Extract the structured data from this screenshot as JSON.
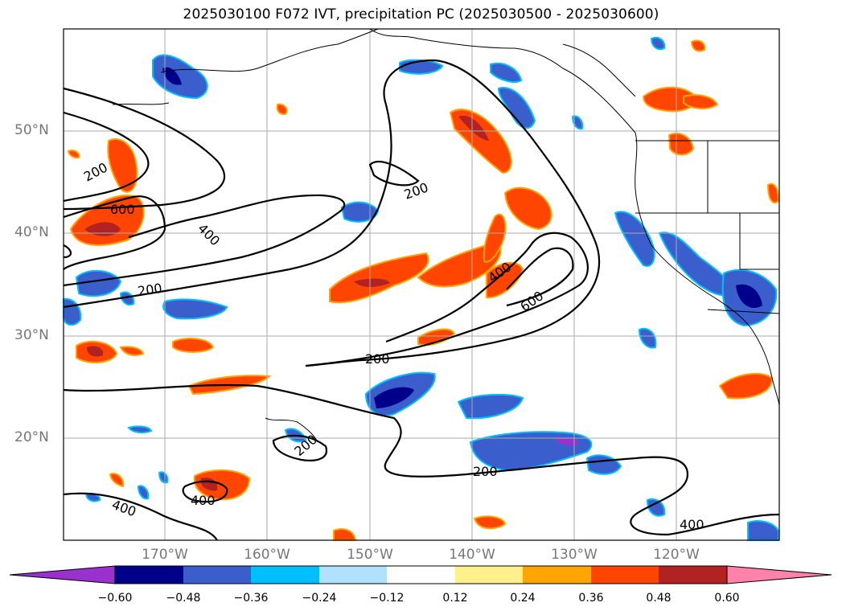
{
  "title": "2025030100 F072 IVT, precipitation PC (2025030500 - 2025030600)",
  "map": {
    "lat_labels": [
      {
        "text": "50°N",
        "lat": 50
      },
      {
        "text": "40°N",
        "lat": 40
      },
      {
        "text": "30°N",
        "lat": 30
      },
      {
        "text": "20°N",
        "lat": 20
      }
    ],
    "lon_labels": [
      {
        "text": "170°W",
        "lon": -170
      },
      {
        "text": "160°W",
        "lon": -160
      },
      {
        "text": "150°W",
        "lon": -150
      },
      {
        "text": "140°W",
        "lon": -140
      },
      {
        "text": "130°W",
        "lon": -130
      },
      {
        "text": "120°W",
        "lon": -120
      }
    ],
    "extent": {
      "lon_min": -180,
      "lon_max": -110,
      "lat_min": 10,
      "lat_max": 60
    },
    "gridlines": true,
    "ivt_contour_labels": [
      "200",
      "200",
      "600",
      "400",
      "200",
      "400",
      "600",
      "200",
      "200",
      "200",
      "400",
      "400",
      "400"
    ]
  },
  "colorbar": {
    "ticks": [
      "−0.60",
      "−0.48",
      "−0.36",
      "−0.24",
      "−0.12",
      "0.12",
      "0.24",
      "0.36",
      "0.48",
      "0.60"
    ],
    "colors": [
      "#9932cc",
      "#00008b",
      "#3a5fcd",
      "#00bfff",
      "#b0e2ff",
      "#ffffff",
      "#fff08c",
      "#ffa500",
      "#ff4500",
      "#b22222",
      "#ff82ab"
    ]
  }
}
